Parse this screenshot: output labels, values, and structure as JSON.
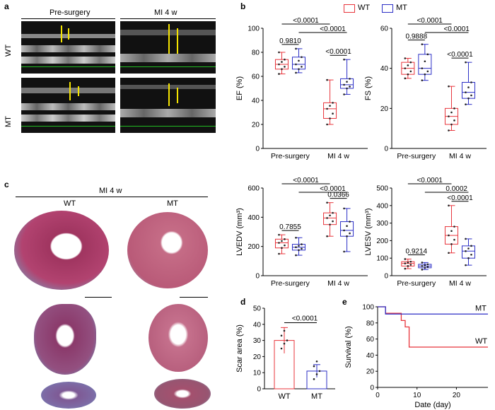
{
  "panels": {
    "a": "a",
    "b": "b",
    "c": "c",
    "d": "d",
    "e": "e"
  },
  "echo": {
    "col_labels": [
      "Pre-surgery",
      "MI 4 w"
    ],
    "row_labels": [
      "WT",
      "MT"
    ]
  },
  "legend": {
    "wt": "WT",
    "mt": "MT",
    "wt_color": "#e8343b",
    "mt_color": "#2c2fc6"
  },
  "hist": {
    "title": "MI 4 w",
    "col_labels": [
      "WT",
      "MT"
    ]
  },
  "chart_data": [
    {
      "type": "box",
      "id": "ef",
      "ylabel": "EF (%)",
      "ylim": [
        0,
        100
      ],
      "yticks": [
        0,
        20,
        40,
        60,
        80,
        100
      ],
      "categories": [
        "Pre-surgery",
        "MI 4 w"
      ],
      "series": [
        {
          "name": "WT",
          "boxes": [
            {
              "min": 62,
              "q1": 66,
              "median": 70,
              "q3": 74,
              "max": 80
            },
            {
              "min": 20,
              "q1": 25,
              "median": 33,
              "q3": 38,
              "max": 57
            }
          ]
        },
        {
          "name": "MT",
          "boxes": [
            {
              "min": 63,
              "q1": 66,
              "median": 70,
              "q3": 76,
              "max": 83
            },
            {
              "min": 45,
              "q1": 50,
              "median": 53,
              "q3": 58,
              "max": 74
            }
          ]
        }
      ],
      "pvals": [
        "0.9810",
        "<0.0001",
        "<0.0001",
        "<0.0001"
      ]
    },
    {
      "type": "box",
      "id": "fs",
      "ylabel": "FS (%)",
      "ylim": [
        0,
        60
      ],
      "yticks": [
        0,
        20,
        40,
        60
      ],
      "categories": [
        "Pre-surgery",
        "MI 4 w"
      ],
      "series": [
        {
          "name": "WT",
          "boxes": [
            {
              "min": 35,
              "q1": 37,
              "median": 40,
              "q3": 43,
              "max": 45
            },
            {
              "min": 9,
              "q1": 12,
              "median": 16,
              "q3": 20,
              "max": 31
            }
          ]
        },
        {
          "name": "MT",
          "boxes": [
            {
              "min": 34,
              "q1": 37,
              "median": 40,
              "q3": 47,
              "max": 52
            },
            {
              "min": 22,
              "q1": 25,
              "median": 28,
              "q3": 33,
              "max": 43
            }
          ]
        }
      ],
      "pvals": [
        "0.9888",
        "<0.0001",
        "<0.0001",
        "<0.0001"
      ]
    },
    {
      "type": "box",
      "id": "lvedv",
      "ylabel": "LVEDV (mm³)",
      "ylim": [
        0,
        600
      ],
      "yticks": [
        0,
        200,
        400,
        600
      ],
      "categories": [
        "Pre-surgery",
        "MI 4 w"
      ],
      "series": [
        {
          "name": "WT",
          "boxes": [
            {
              "min": 150,
              "q1": 190,
              "median": 225,
              "q3": 250,
              "max": 280
            },
            {
              "min": 270,
              "q1": 350,
              "median": 395,
              "q3": 430,
              "max": 500
            }
          ]
        },
        {
          "name": "MT",
          "boxes": [
            {
              "min": 140,
              "q1": 175,
              "median": 195,
              "q3": 215,
              "max": 260
            },
            {
              "min": 165,
              "q1": 270,
              "median": 310,
              "q3": 370,
              "max": 460
            }
          ]
        }
      ],
      "pvals": [
        "0.7855",
        "0.0366",
        "<0.0001",
        "<0.0001"
      ]
    },
    {
      "type": "box",
      "id": "lvesv",
      "ylabel": "LVESV (mm³)",
      "ylim": [
        0,
        500
      ],
      "yticks": [
        0,
        100,
        200,
        300,
        400,
        500
      ],
      "categories": [
        "Pre-surgery",
        "MI 4 w"
      ],
      "series": [
        {
          "name": "WT",
          "boxes": [
            {
              "min": 40,
              "q1": 55,
              "median": 70,
              "q3": 80,
              "max": 95
            },
            {
              "min": 130,
              "q1": 180,
              "median": 230,
              "q3": 280,
              "max": 400
            }
          ]
        },
        {
          "name": "MT",
          "boxes": [
            {
              "min": 35,
              "q1": 45,
              "median": 55,
              "q3": 65,
              "max": 75
            },
            {
              "min": 60,
              "q1": 100,
              "median": 140,
              "q3": 170,
              "max": 210
            }
          ]
        }
      ],
      "pvals": [
        "0.9214",
        "<0.0001",
        "0.0002",
        "<0.0001"
      ]
    },
    {
      "type": "bar",
      "id": "scar",
      "ylabel": "Scar area (%)",
      "ylim": [
        0,
        50
      ],
      "yticks": [
        0,
        10,
        20,
        30,
        40,
        50
      ],
      "categories": [
        "WT",
        "MT"
      ],
      "values": [
        30,
        11
      ],
      "errors": [
        8,
        4
      ],
      "pval": "<0.0001"
    },
    {
      "type": "line",
      "id": "surv",
      "ylabel": "Survival (%)",
      "xlabel": "Date (day)",
      "ylim": [
        0,
        100
      ],
      "xlim": [
        0,
        28
      ],
      "yticks": [
        0,
        20,
        40,
        60,
        80,
        100
      ],
      "xticks": [
        0,
        10,
        20
      ],
      "series": [
        {
          "name": "WT",
          "x": [
            0,
            2,
            2,
            6,
            6,
            7,
            7,
            8,
            8,
            28
          ],
          "y": [
            100,
            100,
            92,
            92,
            83,
            83,
            75,
            75,
            50,
            50
          ]
        },
        {
          "name": "MT",
          "x": [
            0,
            2,
            2,
            28
          ],
          "y": [
            100,
            100,
            91,
            91
          ]
        }
      ]
    }
  ]
}
